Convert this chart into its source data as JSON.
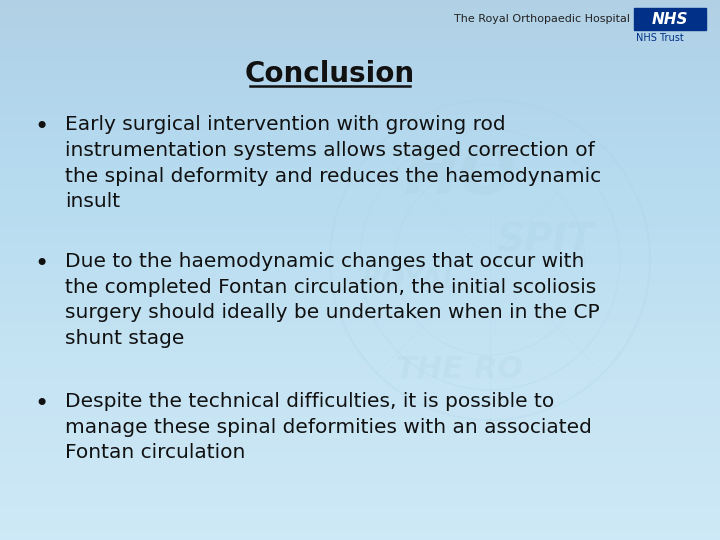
{
  "title": "Conclusion",
  "title_fontsize": 20,
  "title_bold": true,
  "bullet_points": [
    "Early surgical intervention with growing rod\ninstrumentation systems allows staged correction of\nthe spinal deformity and reduces the haemodynamic\ninsult",
    "Due to the haemodynamic changes that occur with\nthe completed Fontan circulation, the initial scoliosis\nsurgery should ideally be undertaken when in the CP\nshunt stage",
    "Despite the technical difficulties, it is possible to\nmanage these spinal deformities with an associated\nFontan circulation"
  ],
  "bullet_fontsize": 14.5,
  "bullet_color": "#111111",
  "bg_color": "#c8e6f5",
  "bg_color_lighter": "#daeef8",
  "text_color": "#111111",
  "header_text": "The Royal Orthopaedic Hospital",
  "header_nhs": "NHS",
  "header_trust": "NHS Trust",
  "watermark_color": "#a8cfe0",
  "figwidth": 7.2,
  "figheight": 5.4,
  "dpi": 100
}
